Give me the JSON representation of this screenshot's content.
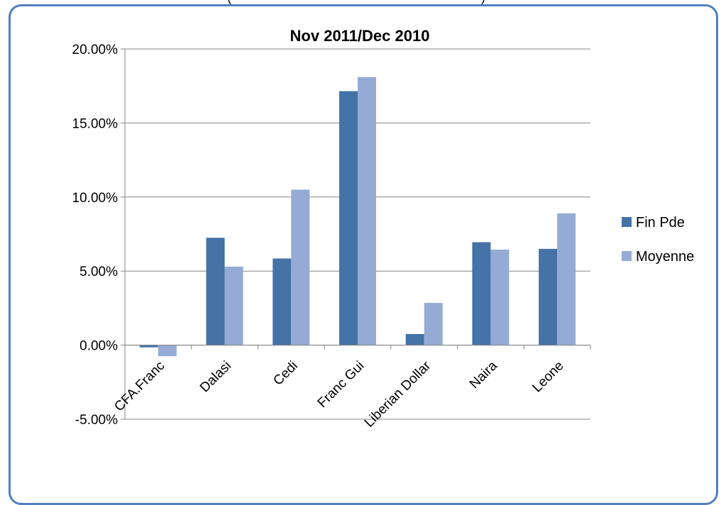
{
  "chart_data": {
    "type": "bar",
    "title": "Nov 2011/Dec 2010",
    "categories": [
      "CFA.Franc",
      "Dalasi",
      "Cedi",
      "Franc Gui",
      "Liberian Dollar",
      "Naira",
      "Leone"
    ],
    "series": [
      {
        "name": "Fin Pde",
        "color": "#4572a7",
        "values": [
          -0.15,
          7.25,
          5.85,
          17.15,
          0.75,
          6.95,
          6.5
        ]
      },
      {
        "name": "Moyenne",
        "color": "#95abd5",
        "values": [
          -0.75,
          5.3,
          10.5,
          18.1,
          2.85,
          6.45,
          8.9
        ]
      }
    ],
    "ylim": [
      -5,
      20
    ],
    "yticks": [
      "-5.00%",
      "0.00%",
      "5.00%",
      "10.00%",
      "15.00%",
      "20.00%"
    ],
    "ytick_values": [
      -5,
      0,
      5,
      10,
      15,
      20
    ],
    "grid": true,
    "legend_position": "right",
    "top_fragment": "(",
    "top_fragment_2": ")"
  }
}
